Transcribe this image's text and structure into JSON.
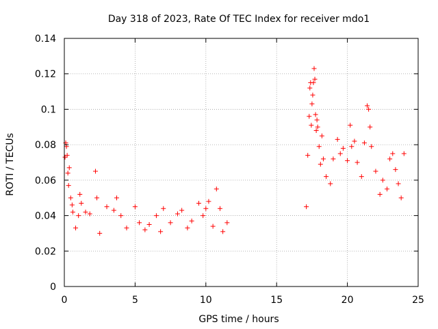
{
  "chart_data": {
    "type": "scatter",
    "title": "Day 318 of 2023, Rate Of TEC Index for receiver mdo1",
    "xlabel": "GPS time / hours",
    "ylabel": "ROTI / TECUs",
    "xlim": [
      0,
      25
    ],
    "ylim": [
      0,
      0.14
    ],
    "x_ticks": [
      0,
      5,
      10,
      15,
      20,
      25
    ],
    "x_tick_labels": [
      "0",
      "5",
      "10",
      "15",
      "20",
      "25"
    ],
    "y_ticks": [
      0,
      0.02,
      0.04,
      0.06,
      0.08,
      0.1,
      0.12,
      0.14
    ],
    "y_tick_labels": [
      "0",
      "0.02",
      "0.04",
      "0.06",
      "0.08",
      "0.1",
      "0.12",
      "0.14"
    ],
    "grid": true,
    "marker": "+",
    "color": "#ff0000",
    "series": [
      {
        "name": "",
        "points": [
          [
            0.05,
            0.073
          ],
          [
            0.1,
            0.081
          ],
          [
            0.15,
            0.079
          ],
          [
            0.2,
            0.074
          ],
          [
            0.25,
            0.064
          ],
          [
            0.3,
            0.057
          ],
          [
            0.35,
            0.067
          ],
          [
            0.45,
            0.05
          ],
          [
            0.55,
            0.046
          ],
          [
            0.6,
            0.042
          ],
          [
            0.8,
            0.033
          ],
          [
            1.0,
            0.04
          ],
          [
            1.1,
            0.052
          ],
          [
            1.2,
            0.047
          ],
          [
            1.5,
            0.042
          ],
          [
            1.8,
            0.041
          ],
          [
            2.2,
            0.065
          ],
          [
            2.3,
            0.05
          ],
          [
            2.5,
            0.03
          ],
          [
            3.0,
            0.045
          ],
          [
            3.5,
            0.043
          ],
          [
            3.7,
            0.05
          ],
          [
            4.0,
            0.04
          ],
          [
            4.4,
            0.033
          ],
          [
            5.0,
            0.045
          ],
          [
            5.3,
            0.036
          ],
          [
            5.7,
            0.032
          ],
          [
            6.0,
            0.035
          ],
          [
            6.5,
            0.04
          ],
          [
            6.8,
            0.031
          ],
          [
            7.0,
            0.044
          ],
          [
            7.5,
            0.036
          ],
          [
            8.0,
            0.041
          ],
          [
            8.3,
            0.043
          ],
          [
            8.7,
            0.033
          ],
          [
            9.0,
            0.037
          ],
          [
            9.5,
            0.047
          ],
          [
            9.8,
            0.04
          ],
          [
            10.0,
            0.044
          ],
          [
            10.2,
            0.048
          ],
          [
            10.5,
            0.034
          ],
          [
            10.75,
            0.055
          ],
          [
            11.0,
            0.044
          ],
          [
            11.2,
            0.031
          ],
          [
            11.5,
            0.036
          ],
          [
            17.1,
            0.045
          ],
          [
            17.2,
            0.074
          ],
          [
            17.3,
            0.096
          ],
          [
            17.35,
            0.112
          ],
          [
            17.4,
            0.115
          ],
          [
            17.45,
            0.091
          ],
          [
            17.5,
            0.103
          ],
          [
            17.55,
            0.108
          ],
          [
            17.6,
            0.115
          ],
          [
            17.65,
            0.123
          ],
          [
            17.7,
            0.117
          ],
          [
            17.75,
            0.097
          ],
          [
            17.8,
            0.088
          ],
          [
            17.85,
            0.094
          ],
          [
            17.9,
            0.09
          ],
          [
            18.0,
            0.079
          ],
          [
            18.1,
            0.069
          ],
          [
            18.2,
            0.085
          ],
          [
            18.3,
            0.072
          ],
          [
            18.5,
            0.062
          ],
          [
            18.8,
            0.058
          ],
          [
            19.0,
            0.072
          ],
          [
            19.3,
            0.083
          ],
          [
            19.5,
            0.075
          ],
          [
            19.7,
            0.078
          ],
          [
            20.0,
            0.071
          ],
          [
            20.2,
            0.091
          ],
          [
            20.3,
            0.079
          ],
          [
            20.5,
            0.082
          ],
          [
            20.7,
            0.07
          ],
          [
            21.0,
            0.062
          ],
          [
            21.2,
            0.081
          ],
          [
            21.4,
            0.102
          ],
          [
            21.5,
            0.1
          ],
          [
            21.6,
            0.09
          ],
          [
            21.7,
            0.079
          ],
          [
            22.0,
            0.065
          ],
          [
            22.3,
            0.052
          ],
          [
            22.5,
            0.06
          ],
          [
            22.8,
            0.055
          ],
          [
            23.0,
            0.072
          ],
          [
            23.2,
            0.075
          ],
          [
            23.4,
            0.066
          ],
          [
            23.6,
            0.058
          ],
          [
            23.8,
            0.05
          ],
          [
            24.0,
            0.075
          ]
        ]
      }
    ]
  }
}
